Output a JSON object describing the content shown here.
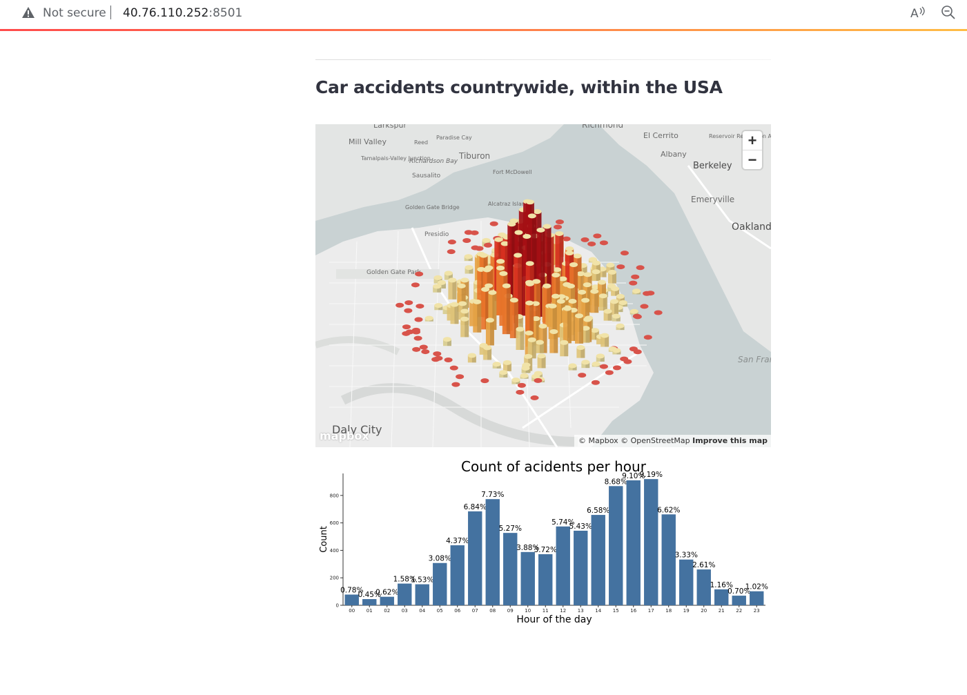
{
  "browser": {
    "security_label": "Not secure",
    "url_host": "40.76.110.252",
    "url_port": ":8501"
  },
  "page": {
    "title": "Car accidents countrywide, within the USA"
  },
  "map": {
    "zoom_in_label": "+",
    "zoom_out_label": "−",
    "attribution": [
      "© Mapbox",
      "© OpenStreetMap",
      "Improve this map"
    ],
    "logo_text": "mapbox",
    "places": [
      "Larkspur",
      "Richmond",
      "Mill Valley",
      "Paradise Cay",
      "Reed",
      "El Cerrito",
      "Reservoir Recreation Area",
      "Tamalpais-Valley Junction",
      "Richardson Bay",
      "Tiburon",
      "Albany",
      "Berkeley",
      "Sausalito",
      "Fort McDowell",
      "Emeryville",
      "Alcatraz Island",
      "Golden Gate Bridge",
      "Oakland",
      "Presidio",
      "Golden Gate Park",
      "San Francisco Bay",
      "Daly City"
    ]
  },
  "chart_data": {
    "type": "bar",
    "title": "Count of acidents per hour",
    "xlabel": "Hour of the day",
    "ylabel": "Count",
    "ylim": [
      0,
      960
    ],
    "yticks": [
      0,
      200,
      400,
      600,
      800
    ],
    "categories": [
      "00",
      "01",
      "02",
      "03",
      "04",
      "05",
      "06",
      "07",
      "08",
      "09",
      "10",
      "11",
      "12",
      "13",
      "14",
      "15",
      "16",
      "17",
      "18",
      "19",
      "20",
      "21",
      "22",
      "23"
    ],
    "values": [
      78,
      45,
      62,
      158,
      153,
      308,
      437,
      684,
      773,
      527,
      388,
      372,
      574,
      543,
      658,
      868,
      910,
      919,
      662,
      333,
      261,
      116,
      70,
      102
    ],
    "labels": [
      "0.78%",
      "0.45%",
      "0.62%",
      "1.58%",
      "1.53%",
      "3.08%",
      "4.37%",
      "6.84%",
      "7.73%",
      "5.27%",
      "3.88%",
      "3.72%",
      "5.74%",
      "5.43%",
      "6.58%",
      "8.68%",
      "9.10%",
      "9.19%",
      "6.62%",
      "3.33%",
      "2.61%",
      "1.16%",
      "0.70%",
      "1.02%"
    ],
    "color": "#4472a0"
  }
}
